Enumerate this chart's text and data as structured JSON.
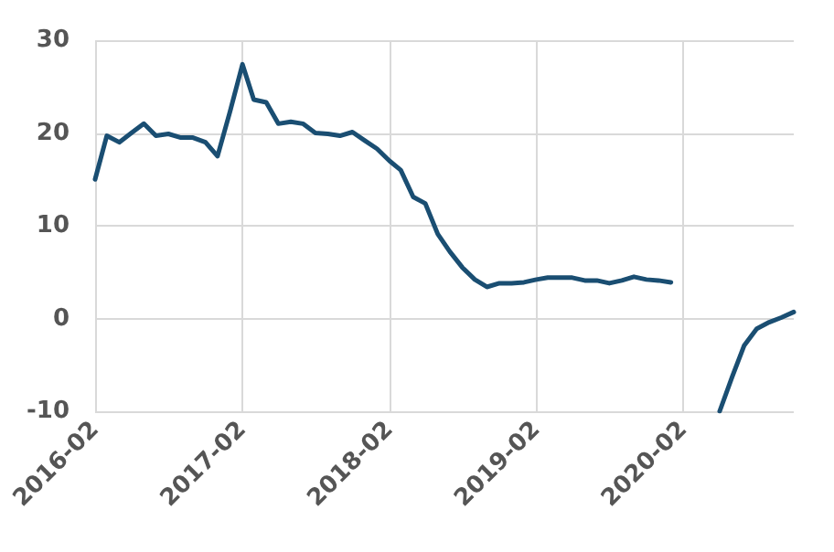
{
  "chart_data": {
    "type": "line",
    "x": [
      "2016-02",
      "2016-03",
      "2016-04",
      "2016-05",
      "2016-06",
      "2016-07",
      "2016-08",
      "2016-09",
      "2016-10",
      "2016-11",
      "2016-12",
      "2017-01",
      "2017-02",
      "2017-03",
      "2017-04",
      "2017-05",
      "2017-06",
      "2017-07",
      "2017-08",
      "2017-09",
      "2017-10",
      "2017-11",
      "2017-12",
      "2018-01",
      "2018-02",
      "2018-03",
      "2018-04",
      "2018-05",
      "2018-06",
      "2018-07",
      "2018-08",
      "2018-09",
      "2018-10",
      "2018-11",
      "2018-12",
      "2019-01",
      "2019-02",
      "2019-03",
      "2019-04",
      "2019-05",
      "2019-06",
      "2019-07",
      "2019-08",
      "2019-09",
      "2019-10",
      "2019-11",
      "2019-12",
      "2020-01",
      "2020-02",
      "2020-03",
      "2020-04",
      "2020-05",
      "2020-06",
      "2020-07",
      "2020-08",
      "2020-09",
      "2020-10",
      "2020-11"
    ],
    "series": [
      {
        "color": "#1a4e72",
        "values": [
          15.0,
          19.7,
          19.0,
          20.0,
          21.0,
          19.7,
          19.9,
          19.5,
          19.5,
          19.0,
          17.5,
          22.3,
          27.4,
          23.6,
          23.3,
          21.0,
          21.2,
          21.0,
          20.0,
          19.9,
          19.7,
          20.1,
          19.2,
          18.3,
          17.0,
          16.0,
          13.1,
          12.4,
          9.1,
          7.2,
          5.5,
          4.2,
          3.4,
          3.8,
          3.8,
          3.9,
          4.2,
          4.4,
          4.4,
          4.4,
          4.1,
          4.1,
          3.8,
          4.1,
          4.5,
          4.2,
          4.1,
          3.9,
          null,
          null,
          null,
          -10,
          -6.3,
          -2.9,
          -1.1,
          -0.4,
          0.1,
          0.7
        ]
      }
    ],
    "xlim": [
      "2016-02",
      "2020-11"
    ],
    "xticks": [
      "2016-02",
      "2017-02",
      "2018-02",
      "2019-02",
      "2020-02"
    ],
    "ylim": [
      -10,
      30
    ],
    "yticks": [
      -10,
      0,
      10,
      20,
      30
    ],
    "grid": true,
    "marker": "none",
    "line_style": "solid"
  }
}
